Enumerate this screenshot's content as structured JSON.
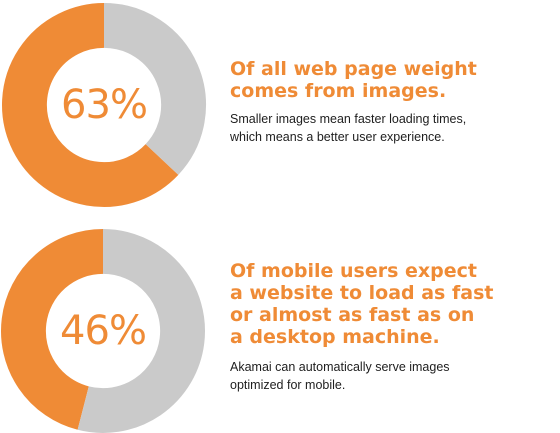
{
  "colors": {
    "accent": "#ef8b36",
    "remainder": "#cacaca",
    "text": "#1e1e1e"
  },
  "stats": [
    {
      "value_label": "63%",
      "headline": "Of all web page weight\ncomes from images.",
      "body": "Smaller images mean faster loading times,\nwhich means a better user experience."
    },
    {
      "value_label": "46%",
      "headline": "Of mobile users expect\na website to load as fast\nor almost as fast as on\na desktop machine.",
      "body": "Akamai can automatically serve images\noptimized for mobile."
    }
  ],
  "chart_data": [
    {
      "type": "pie",
      "donut": true,
      "slices": [
        {
          "label": "63%",
          "value": 63,
          "color": "#ef8b36"
        },
        {
          "value": 37,
          "color": "#cacaca"
        }
      ]
    },
    {
      "type": "pie",
      "donut": true,
      "slices": [
        {
          "label": "46%",
          "value": 46,
          "color": "#ef8b36"
        },
        {
          "value": 54,
          "color": "#cacaca"
        }
      ]
    }
  ]
}
